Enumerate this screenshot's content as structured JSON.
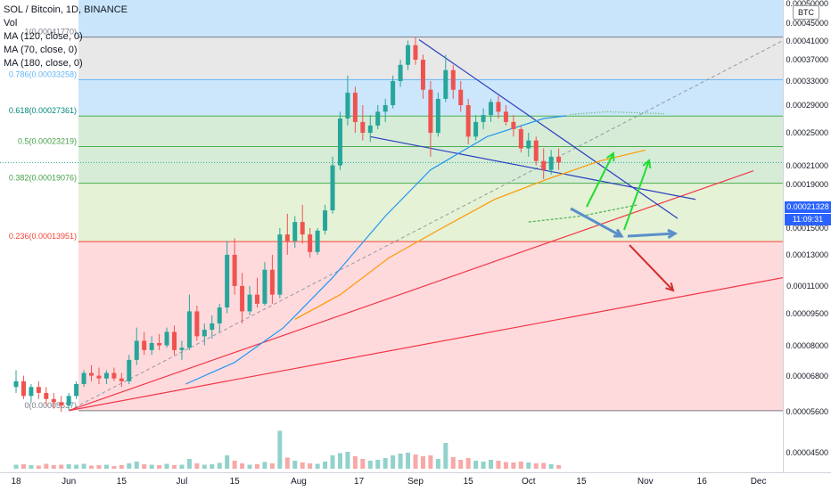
{
  "legend": {
    "title": "SOL / Bitcoin, 1D, BINANCE",
    "vol": "Vol",
    "ma1": "MA (120, close, 0)",
    "ma2": "MA (70, close, 0)",
    "ma3": "MA (180, close, 0)"
  },
  "currency_badge": "BTC",
  "last_price": "0.00021328",
  "countdown": "11:09:31",
  "fib_levels": [
    {
      "label": "1(0.00041770)",
      "value": 0.0004177,
      "band": "#bbdefb",
      "line": "#787b86",
      "text": "#787b86"
    },
    {
      "label": "0.786(0.00033258)",
      "value": 0.00033258,
      "band": "#e0e0e0",
      "line": "#64b5f6",
      "text": "#64b5f6"
    },
    {
      "label": "0.618(0.00027361)",
      "value": 0.00027361,
      "band": "#bbdefb",
      "line": "#4caf50",
      "text": "#00897b"
    },
    {
      "label": "0.5(0.00023219)",
      "value": 0.00023219,
      "band": "#c8e6c9",
      "line": "#4caf50",
      "text": "#43a047"
    },
    {
      "label": "0.382(0.00019076)",
      "value": 0.00019076,
      "band": "#c8e6c9",
      "line": "#4caf50",
      "text": "#43a047"
    },
    {
      "label": "0.236(0.00013951)",
      "value": 0.00013951,
      "band": "#dcedc8",
      "line": "#f44336",
      "text": "#f44336"
    },
    {
      "label": "0(0.00005637)",
      "value": 5.637e-05,
      "band": "#ffcdd2",
      "line": "#787b86",
      "text": "#787b86"
    }
  ],
  "price_ticks": [
    "0.00050000",
    "0.00045000",
    "0.00041000",
    "0.00037000",
    "0.00033000",
    "0.00029000",
    "0.00025000",
    "0.00021000",
    "0.00019000",
    "0.00017000",
    "0.00015000",
    "0.00013000",
    "0.00011000",
    "0.00009500",
    "0.00008000",
    "0.00006800",
    "0.00005600",
    "0.00004500"
  ],
  "time_ticks": [
    "18",
    "Jun",
    "15",
    "Jul",
    "15",
    "Aug",
    "17",
    "Sep",
    "15",
    "Oct",
    "15",
    "Nov",
    "16",
    "Dec"
  ],
  "colors": {
    "up": "#26a69a",
    "down": "#ef5350",
    "ma120": "#2196f3",
    "ma70": "#ff9800",
    "ma180": "#4caf50",
    "accent": "#2962ff"
  },
  "chart_data": {
    "type": "candlestick",
    "title": "SOL / Bitcoin, 1D, BINANCE",
    "scale": "log",
    "ylim": [
      4.2e-05,
      0.00052
    ],
    "x_range": [
      "2020-05-18",
      "2020-12-03"
    ],
    "candles": [
      [
        "2020-05-18",
        6.4e-05,
        7e-05,
        6.2e-05,
        6.6e-05
      ],
      [
        "2020-05-20",
        6.6e-05,
        6.8e-05,
        6e-05,
        6.1e-05
      ],
      [
        "2020-05-22",
        6.1e-05,
        6.5e-05,
        5.9e-05,
        6.4e-05
      ],
      [
        "2020-05-24",
        6.4e-05,
        6.6e-05,
        6e-05,
        6.2e-05
      ],
      [
        "2020-05-26",
        6.2e-05,
        6.4e-05,
        5.8e-05,
        6e-05
      ],
      [
        "2020-05-28",
        6e-05,
        6.2e-05,
        5.7e-05,
        5.9e-05
      ],
      [
        "2020-05-30",
        5.9e-05,
        6.1e-05,
        5.6e-05,
        5.8e-05
      ],
      [
        "2020-06-01",
        5.8e-05,
        6.2e-05,
        5.64e-05,
        6.1e-05
      ],
      [
        "2020-06-03",
        6.1e-05,
        6.6e-05,
        6e-05,
        6.5e-05
      ],
      [
        "2020-06-05",
        6.5e-05,
        7e-05,
        6.4e-05,
        6.9e-05
      ],
      [
        "2020-06-07",
        6.9e-05,
        7.2e-05,
        6.6e-05,
        6.8e-05
      ],
      [
        "2020-06-09",
        6.8e-05,
        7.1e-05,
        6.5e-05,
        6.7e-05
      ],
      [
        "2020-06-11",
        6.7e-05,
        7e-05,
        6.5e-05,
        6.9e-05
      ],
      [
        "2020-06-13",
        6.9e-05,
        7.1e-05,
        6.6e-05,
        6.7e-05
      ],
      [
        "2020-06-15",
        6.7e-05,
        6.9e-05,
        6.4e-05,
        6.6e-05
      ],
      [
        "2020-06-17",
        6.6e-05,
        7.6e-05,
        6.5e-05,
        7.4e-05
      ],
      [
        "2020-06-19",
        7.4e-05,
        8.8e-05,
        7.2e-05,
        8.2e-05
      ],
      [
        "2020-06-21",
        8.2e-05,
        8.6e-05,
        7.6e-05,
        7.8e-05
      ],
      [
        "2020-06-23",
        7.8e-05,
        8.4e-05,
        7.6e-05,
        8.1e-05
      ],
      [
        "2020-06-25",
        8.1e-05,
        8.5e-05,
        7.8e-05,
        8e-05
      ],
      [
        "2020-06-27",
        8e-05,
        8.8e-05,
        7.9e-05,
        8.6e-05
      ],
      [
        "2020-06-29",
        8.6e-05,
        8.9e-05,
        7.6e-05,
        7.8e-05
      ],
      [
        "2020-07-01",
        7.8e-05,
        8.2e-05,
        7.4e-05,
        7.9e-05
      ],
      [
        "2020-07-03",
        7.9e-05,
        0.000105,
        7.8e-05,
        9.6e-05
      ],
      [
        "2020-07-05",
        9.6e-05,
        9.9e-05,
        8.2e-05,
        8.4e-05
      ],
      [
        "2020-07-07",
        8.4e-05,
        9e-05,
        8e-05,
        8.7e-05
      ],
      [
        "2020-07-09",
        8.7e-05,
        9.4e-05,
        8.3e-05,
        9e-05
      ],
      [
        "2020-07-11",
        9e-05,
        0.0001,
        8.6e-05,
        9.8e-05
      ],
      [
        "2020-07-13",
        9.8e-05,
        0.00014,
        9.5e-05,
        0.00013
      ],
      [
        "2020-07-15",
        0.00013,
        0.000142,
        0.000105,
        0.00011
      ],
      [
        "2020-07-17",
        0.00011,
        0.000118,
        9e-05,
        9.6e-05
      ],
      [
        "2020-07-19",
        9.6e-05,
        0.00011,
        9.4e-05,
        0.000105
      ],
      [
        "2020-07-21",
        0.000105,
        0.000115,
        9.8e-05,
        0.0001
      ],
      [
        "2020-07-23",
        0.0001,
        0.000125,
        9.9e-05,
        0.00012
      ],
      [
        "2020-07-25",
        0.00012,
        0.00013,
        0.0001,
        0.000105
      ],
      [
        "2020-07-27",
        0.000105,
        0.00015,
        0.000103,
        0.000145
      ],
      [
        "2020-07-29",
        0.000145,
        0.000162,
        0.00013,
        0.00014
      ],
      [
        "2020-07-31",
        0.00014,
        0.00016,
        0.000135,
        0.000155
      ],
      [
        "2020-08-02",
        0.000155,
        0.00017,
        0.000138,
        0.000145
      ],
      [
        "2020-08-04",
        0.000145,
        0.00015,
        0.000128,
        0.000132
      ],
      [
        "2020-08-06",
        0.000132,
        0.00015,
        0.00013,
        0.000148
      ],
      [
        "2020-08-08",
        0.000148,
        0.00017,
        0.000145,
        0.000165
      ],
      [
        "2020-08-10",
        0.000165,
        0.00022,
        0.000162,
        0.00021
      ],
      [
        "2020-08-12",
        0.00021,
        0.00028,
        0.000205,
        0.00027
      ],
      [
        "2020-08-14",
        0.00027,
        0.00034,
        0.00026,
        0.00031
      ],
      [
        "2020-08-16",
        0.00031,
        0.00032,
        0.00025,
        0.000265
      ],
      [
        "2020-08-18",
        0.000265,
        0.00029,
        0.00024,
        0.00025
      ],
      [
        "2020-08-20",
        0.00025,
        0.000275,
        0.000238,
        0.00026
      ],
      [
        "2020-08-22",
        0.00026,
        0.00029,
        0.000255,
        0.00028
      ],
      [
        "2020-08-24",
        0.00028,
        0.0003,
        0.000265,
        0.00029
      ],
      [
        "2020-08-26",
        0.00029,
        0.00034,
        0.000285,
        0.00033
      ],
      [
        "2020-08-28",
        0.00033,
        0.00037,
        0.00032,
        0.00036
      ],
      [
        "2020-08-30",
        0.00036,
        0.00041,
        0.00035,
        0.0004
      ],
      [
        "2020-09-01",
        0.0004,
        0.000418,
        0.00036,
        0.00037
      ],
      [
        "2020-09-03",
        0.00037,
        0.00038,
        0.0003,
        0.000315
      ],
      [
        "2020-09-05",
        0.000315,
        0.00033,
        0.00022,
        0.00025
      ],
      [
        "2020-09-07",
        0.00025,
        0.00031,
        0.000245,
        0.0003
      ],
      [
        "2020-09-09",
        0.0003,
        0.00038,
        0.000295,
        0.00035
      ],
      [
        "2020-09-11",
        0.00035,
        0.00036,
        0.0003,
        0.000315
      ],
      [
        "2020-09-13",
        0.000315,
        0.00033,
        0.00028,
        0.00029
      ],
      [
        "2020-09-15",
        0.00029,
        0.0003,
        0.000235,
        0.000245
      ],
      [
        "2020-09-17",
        0.000245,
        0.000275,
        0.00024,
        0.000265
      ],
      [
        "2020-09-19",
        0.000265,
        0.000285,
        0.000255,
        0.000275
      ],
      [
        "2020-09-21",
        0.000275,
        0.0003,
        0.000265,
        0.000295
      ],
      [
        "2020-09-23",
        0.000295,
        0.000305,
        0.00027,
        0.00028
      ],
      [
        "2020-09-25",
        0.00028,
        0.00029,
        0.00026,
        0.000265
      ],
      [
        "2020-09-27",
        0.000265,
        0.000275,
        0.000245,
        0.000255
      ],
      [
        "2020-09-29",
        0.000255,
        0.00026,
        0.000225,
        0.00023
      ],
      [
        "2020-10-01",
        0.00023,
        0.00025,
        0.00022,
        0.00024
      ],
      [
        "2020-10-03",
        0.00024,
        0.000245,
        0.00021,
        0.000215
      ],
      [
        "2020-10-05",
        0.000215,
        0.00023,
        0.000195,
        0.000205
      ],
      [
        "2020-10-07",
        0.000205,
        0.000228,
        0.0002,
        0.00022
      ],
      [
        "2020-10-09",
        0.00022,
        0.00023,
        0.000205,
        0.0002133
      ]
    ],
    "volume": [
      [
        "2020-05-18",
        9
      ],
      [
        "2020-05-20",
        10
      ],
      [
        "2020-05-22",
        8
      ],
      [
        "2020-05-24",
        7
      ],
      [
        "2020-05-26",
        11
      ],
      [
        "2020-05-28",
        8
      ],
      [
        "2020-05-30",
        9
      ],
      [
        "2020-06-01",
        10
      ],
      [
        "2020-06-03",
        9
      ],
      [
        "2020-06-05",
        11
      ],
      [
        "2020-06-07",
        7
      ],
      [
        "2020-06-09",
        8
      ],
      [
        "2020-06-11",
        9
      ],
      [
        "2020-06-13",
        6
      ],
      [
        "2020-06-15",
        8
      ],
      [
        "2020-06-17",
        12
      ],
      [
        "2020-06-19",
        16
      ],
      [
        "2020-06-21",
        10
      ],
      [
        "2020-06-23",
        9
      ],
      [
        "2020-06-25",
        8
      ],
      [
        "2020-06-27",
        11
      ],
      [
        "2020-06-29",
        8
      ],
      [
        "2020-07-01",
        9
      ],
      [
        "2020-07-03",
        22
      ],
      [
        "2020-07-05",
        12
      ],
      [
        "2020-07-07",
        9
      ],
      [
        "2020-07-09",
        10
      ],
      [
        "2020-07-11",
        13
      ],
      [
        "2020-07-13",
        30
      ],
      [
        "2020-07-15",
        18
      ],
      [
        "2020-07-17",
        12
      ],
      [
        "2020-07-19",
        9
      ],
      [
        "2020-07-21",
        10
      ],
      [
        "2020-07-23",
        15
      ],
      [
        "2020-07-25",
        12
      ],
      [
        "2020-07-27",
        85
      ],
      [
        "2020-07-29",
        25
      ],
      [
        "2020-07-31",
        18
      ],
      [
        "2020-08-02",
        14
      ],
      [
        "2020-08-04",
        12
      ],
      [
        "2020-08-06",
        11
      ],
      [
        "2020-08-08",
        16
      ],
      [
        "2020-08-10",
        30
      ],
      [
        "2020-08-12",
        35
      ],
      [
        "2020-08-14",
        38
      ],
      [
        "2020-08-16",
        28
      ],
      [
        "2020-08-18",
        22
      ],
      [
        "2020-08-20",
        18
      ],
      [
        "2020-08-22",
        20
      ],
      [
        "2020-08-24",
        24
      ],
      [
        "2020-08-26",
        30
      ],
      [
        "2020-08-28",
        34
      ],
      [
        "2020-08-30",
        36
      ],
      [
        "2020-09-01",
        32
      ],
      [
        "2020-09-03",
        28
      ],
      [
        "2020-09-05",
        30
      ],
      [
        "2020-09-07",
        22
      ],
      [
        "2020-09-09",
        58
      ],
      [
        "2020-09-11",
        26
      ],
      [
        "2020-09-13",
        20
      ],
      [
        "2020-09-15",
        24
      ],
      [
        "2020-09-17",
        18
      ],
      [
        "2020-09-19",
        16
      ],
      [
        "2020-09-21",
        20
      ],
      [
        "2020-09-23",
        18
      ],
      [
        "2020-09-25",
        15
      ],
      [
        "2020-09-27",
        14
      ],
      [
        "2020-09-29",
        16
      ],
      [
        "2020-10-01",
        14
      ],
      [
        "2020-10-03",
        12
      ],
      [
        "2020-10-05",
        13
      ],
      [
        "2020-10-07",
        10
      ],
      [
        "2020-10-09",
        8
      ]
    ],
    "ma120": [
      [
        "2020-07-02",
        6.5e-05
      ],
      [
        "2020-07-15",
        7.3e-05
      ],
      [
        "2020-07-28",
        8.8e-05
      ],
      [
        "2020-08-10",
        0.000115
      ],
      [
        "2020-08-24",
        0.00016
      ],
      [
        "2020-09-05",
        0.000205
      ],
      [
        "2020-09-20",
        0.000245
      ],
      [
        "2020-10-05",
        0.00027
      ],
      [
        "2020-10-11",
        0.000274
      ]
    ],
    "ma70": [
      [
        "2020-07-31",
        9.2e-05
      ],
      [
        "2020-08-12",
        0.000105
      ],
      [
        "2020-08-25",
        0.000128
      ],
      [
        "2020-09-08",
        0.00015
      ],
      [
        "2020-09-22",
        0.000175
      ],
      [
        "2020-10-06",
        0.000195
      ],
      [
        "2020-10-20",
        0.000215
      ],
      [
        "2020-11-01",
        0.000228
      ]
    ],
    "ma180": [
      [
        "2020-10-01",
        0.000155
      ],
      [
        "2020-10-15",
        0.00016
      ],
      [
        "2020-10-30",
        0.00017
      ]
    ],
    "ma120_proj": [
      [
        "2020-10-12",
        0.000276
      ],
      [
        "2020-10-22",
        0.00028
      ],
      [
        "2020-11-06",
        0.000277
      ]
    ]
  }
}
